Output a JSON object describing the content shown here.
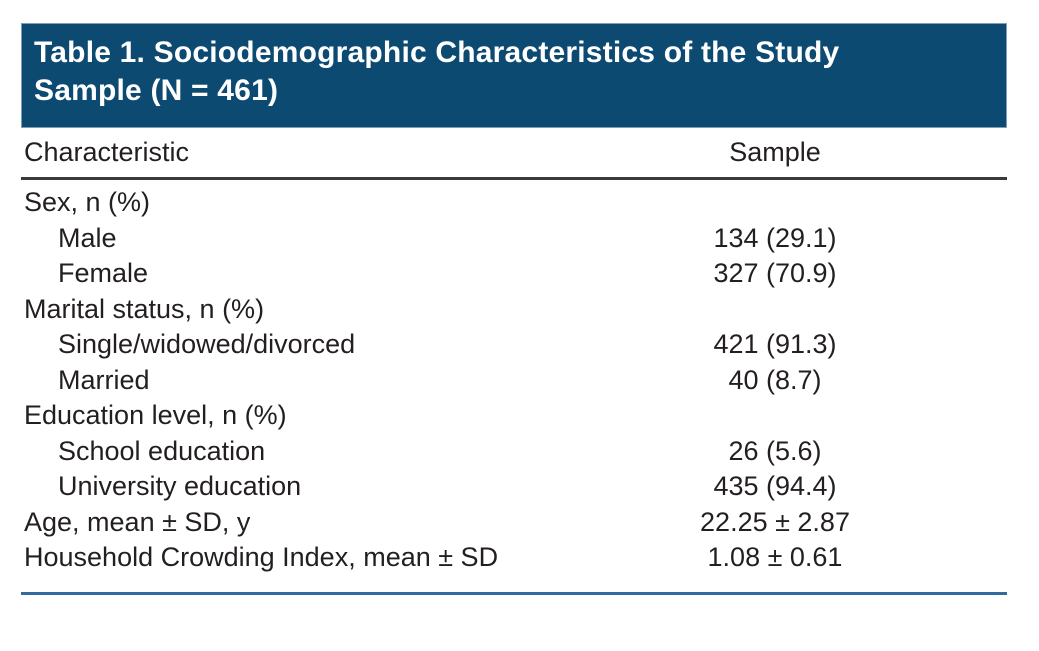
{
  "title": {
    "line1": "Table 1. Sociodemographic Characteristics of the Study",
    "line2": "Sample (N = 461)"
  },
  "table": {
    "columns": [
      "Characteristic",
      "Sample"
    ],
    "rows": [
      {
        "label": "Sex, n (%)",
        "value": "",
        "indent": false
      },
      {
        "label": "Male",
        "value": "134 (29.1)",
        "indent": true
      },
      {
        "label": "Female",
        "value": "327 (70.9)",
        "indent": true
      },
      {
        "label": "Marital status, n (%)",
        "value": "",
        "indent": false
      },
      {
        "label": "Single/widowed/divorced",
        "value": "421 (91.3)",
        "indent": true
      },
      {
        "label": "Married",
        "value": "40 (8.7)",
        "indent": true
      },
      {
        "label": "Education level, n (%)",
        "value": "",
        "indent": false
      },
      {
        "label": "School education",
        "value": "26 (5.6)",
        "indent": true
      },
      {
        "label": "University education",
        "value": "435 (94.4)",
        "indent": true
      },
      {
        "label": "Age, mean ± SD, y",
        "value": "22.25 ± 2.87",
        "indent": false
      },
      {
        "label": "Household Crowding Index, mean ± SD",
        "value": "1.08 ± 0.61",
        "indent": false
      }
    ]
  },
  "colors": {
    "header_bg": "#0d4a72",
    "header_edge": "#7d9db8",
    "text": "#231f20",
    "header_rule": "#3a3a3a",
    "bottom_rule": "#2f6b9e"
  }
}
